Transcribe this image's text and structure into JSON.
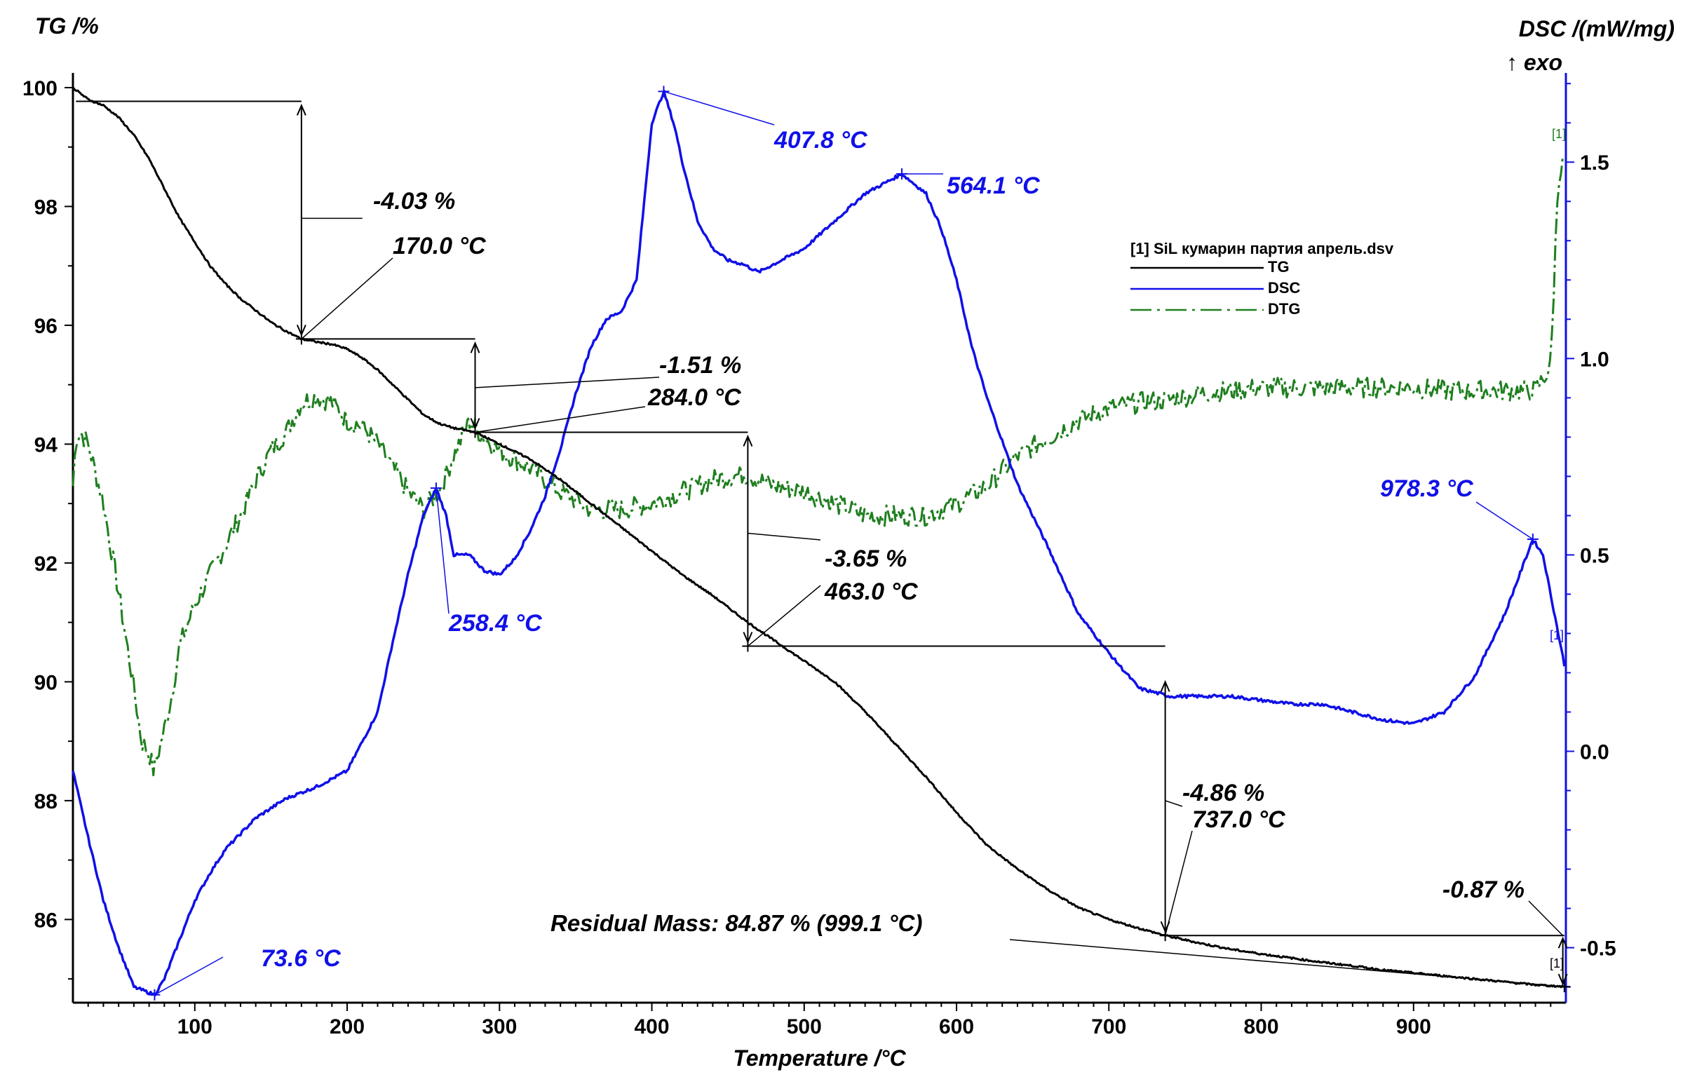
{
  "chart_data": {
    "type": "line",
    "xlabel": "Temperature /°C",
    "ylabel_left": "TG /%",
    "ylabel_right": "DSC /(mW/mg)",
    "ylabel_right_sub": "↑ exo",
    "xlim": [
      20,
      1000
    ],
    "ylim_left": [
      84.6,
      100.2
    ],
    "ylim_right": [
      -0.64,
      1.72
    ],
    "x_ticks": [
      "100",
      "200",
      "300",
      "400",
      "500",
      "600",
      "700",
      "800",
      "900"
    ],
    "y_left_ticks": [
      "100",
      "98",
      "96",
      "94",
      "92",
      "90",
      "88",
      "86"
    ],
    "y_right_ticks": [
      "1.5",
      "1.0",
      "0.5",
      "0.0",
      "-0.5"
    ],
    "legend": {
      "title": "[1] SiL кумарин партия апрель.dsv",
      "entries": [
        "TG",
        "DSC",
        "DTG"
      ],
      "placement": "upper-middle-right"
    },
    "colors": {
      "TG": "#000000",
      "DSC": "#1010e8",
      "DTG": "#1f7f1f"
    },
    "series": [
      {
        "name": "TG",
        "axis": "left",
        "x": [
          20,
          30,
          40,
          50,
          60,
          70,
          80,
          90,
          100,
          110,
          120,
          130,
          140,
          150,
          160,
          170,
          180,
          190,
          200,
          210,
          220,
          230,
          240,
          250,
          260,
          270,
          284,
          300,
          320,
          340,
          360,
          380,
          400,
          420,
          440,
          463,
          480,
          500,
          520,
          540,
          560,
          580,
          600,
          620,
          640,
          660,
          680,
          700,
          720,
          737,
          760,
          780,
          800,
          820,
          840,
          860,
          880,
          900,
          920,
          940,
          960,
          980,
          999
        ],
        "y": [
          100.0,
          99.8,
          99.7,
          99.5,
          99.2,
          98.8,
          98.3,
          97.8,
          97.4,
          97.0,
          96.7,
          96.45,
          96.25,
          96.05,
          95.9,
          95.77,
          95.72,
          95.68,
          95.6,
          95.45,
          95.25,
          95.0,
          94.75,
          94.5,
          94.35,
          94.27,
          94.2,
          94.0,
          93.75,
          93.4,
          93.0,
          92.6,
          92.2,
          91.8,
          91.45,
          91.0,
          90.7,
          90.35,
          90.0,
          89.5,
          88.95,
          88.4,
          87.8,
          87.25,
          86.85,
          86.5,
          86.2,
          86.0,
          85.85,
          85.73,
          85.6,
          85.5,
          85.42,
          85.35,
          85.28,
          85.22,
          85.15,
          85.1,
          85.05,
          85.0,
          84.95,
          84.9,
          84.87
        ]
      },
      {
        "name": "DSC",
        "axis": "right",
        "x": [
          20,
          30,
          40,
          50,
          60,
          73.6,
          80,
          90,
          100,
          110,
          120,
          140,
          160,
          180,
          200,
          220,
          230,
          240,
          250,
          258.4,
          265,
          270,
          280,
          290,
          300,
          310,
          320,
          330,
          340,
          350,
          360,
          370,
          380,
          390,
          400,
          407.8,
          415,
          420,
          430,
          440,
          450,
          460,
          470,
          480,
          490,
          500,
          520,
          540,
          564.1,
          580,
          590,
          600,
          610,
          620,
          640,
          660,
          680,
          700,
          720,
          740,
          760,
          780,
          800,
          820,
          840,
          860,
          880,
          900,
          920,
          940,
          960,
          978.3,
          985,
          990,
          999
        ],
        "y": [
          -0.05,
          -0.22,
          -0.38,
          -0.5,
          -0.6,
          -0.62,
          -0.58,
          -0.48,
          -0.38,
          -0.31,
          -0.25,
          -0.17,
          -0.12,
          -0.09,
          -0.05,
          0.1,
          0.28,
          0.45,
          0.6,
          0.67,
          0.6,
          0.5,
          0.5,
          0.46,
          0.45,
          0.49,
          0.56,
          0.65,
          0.77,
          0.91,
          1.03,
          1.1,
          1.12,
          1.2,
          1.6,
          1.68,
          1.59,
          1.5,
          1.35,
          1.28,
          1.25,
          1.24,
          1.22,
          1.24,
          1.26,
          1.28,
          1.35,
          1.42,
          1.47,
          1.42,
          1.33,
          1.2,
          1.03,
          0.9,
          0.68,
          0.52,
          0.35,
          0.25,
          0.16,
          0.14,
          0.14,
          0.14,
          0.13,
          0.12,
          0.12,
          0.1,
          0.08,
          0.07,
          0.1,
          0.19,
          0.35,
          0.54,
          0.5,
          0.4,
          0.22
        ]
      },
      {
        "name": "DTG",
        "axis": "left",
        "x": [
          20,
          22,
          25,
          30,
          40,
          50,
          60,
          65,
          70,
          73,
          75,
          80,
          85,
          90,
          100,
          110,
          120,
          130,
          140,
          150,
          160,
          170,
          180,
          190,
          200,
          210,
          220,
          230,
          240,
          250,
          260,
          270,
          280,
          290,
          300,
          320,
          340,
          360,
          380,
          400,
          420,
          440,
          460,
          480,
          500,
          520,
          540,
          560,
          580,
          600,
          620,
          640,
          660,
          680,
          700,
          720,
          740,
          760,
          780,
          800,
          820,
          840,
          860,
          880,
          900,
          920,
          940,
          960,
          980,
          990,
          995,
          999
        ],
        "y": [
          93.3,
          94.1,
          94.2,
          94.0,
          93.0,
          91.5,
          89.9,
          89.0,
          88.8,
          88.5,
          88.7,
          89.2,
          89.8,
          90.6,
          91.3,
          91.8,
          92.3,
          92.8,
          93.4,
          93.9,
          94.2,
          94.7,
          94.8,
          94.7,
          94.4,
          94.3,
          94.0,
          93.6,
          93.2,
          92.9,
          93.2,
          93.8,
          94.4,
          94.1,
          93.9,
          93.6,
          93.2,
          92.9,
          92.9,
          93.0,
          93.2,
          93.4,
          93.5,
          93.3,
          93.2,
          93.0,
          92.8,
          92.8,
          92.8,
          93.0,
          93.3,
          93.8,
          94.1,
          94.4,
          94.6,
          94.7,
          94.75,
          94.85,
          94.9,
          94.95,
          94.95,
          94.95,
          94.95,
          94.95,
          94.95,
          94.9,
          94.9,
          94.9,
          94.9,
          95.3,
          98.5,
          98.8
        ]
      }
    ],
    "annotations": [
      {
        "series": "TG",
        "step_label": "-4.03 %",
        "temp_label": "170.0 °C"
      },
      {
        "series": "TG",
        "step_label": "-1.51 %",
        "temp_label": "284.0 °C"
      },
      {
        "series": "TG",
        "step_label": "-3.65 %",
        "temp_label": "463.0 °C"
      },
      {
        "series": "TG",
        "step_label": "-4.86 %",
        "temp_label": "737.0 °C"
      },
      {
        "series": "TG",
        "step_label": "-0.87 %",
        "temp_label": ""
      },
      {
        "series": "TG",
        "residual_label": "Residual Mass: 84.87 % (999.1 °C)"
      },
      {
        "series": "DSC",
        "peak_label": "73.6 °C"
      },
      {
        "series": "DSC",
        "peak_label": "258.4 °C"
      },
      {
        "series": "DSC",
        "peak_label": "407.8 °C"
      },
      {
        "series": "DSC",
        "peak_label": "564.1 °C"
      },
      {
        "series": "DSC",
        "peak_label": "978.3 °C"
      }
    ],
    "end_markers": [
      "[1]",
      "[1]",
      "[1]"
    ]
  }
}
